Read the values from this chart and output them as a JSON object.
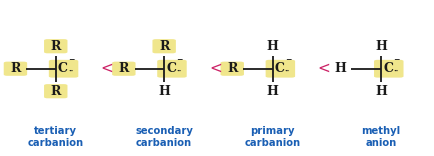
{
  "bg_color": "#ffffff",
  "highlight_color": "#f0e68c",
  "dark_color": "#1a1a1a",
  "blue_color": "#1a5fb4",
  "pink_color": "#cc2266",
  "structures": [
    {
      "name": "tertiary\ncarbanion",
      "top": "R",
      "bottom": "R",
      "left": "R",
      "center": "C",
      "hl_top": true,
      "hl_bottom": true,
      "hl_left": true,
      "hl_center": true
    },
    {
      "name": "secondary\ncarbanion",
      "top": "R",
      "bottom": "H",
      "left": "R",
      "center": "C",
      "hl_top": true,
      "hl_bottom": false,
      "hl_left": true,
      "hl_center": true
    },
    {
      "name": "primary\ncarbanion",
      "top": "H",
      "bottom": "H",
      "left": "R",
      "center": "C",
      "hl_top": false,
      "hl_bottom": false,
      "hl_left": true,
      "hl_center": true
    },
    {
      "name": "methyl\nanion",
      "top": "H",
      "bottom": "H",
      "left": "H",
      "center": "C",
      "hl_top": false,
      "hl_bottom": false,
      "hl_left": false,
      "hl_center": true
    }
  ],
  "figsize": [
    4.35,
    1.56
  ],
  "dpi": 100
}
